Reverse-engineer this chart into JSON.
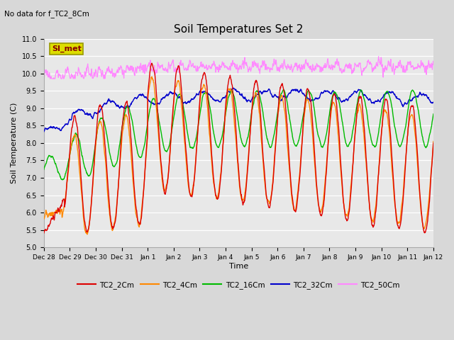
{
  "title": "Soil Temperatures Set 2",
  "subtitle": "No data for f_TC2_8Cm",
  "ylabel": "Soil Temperature (C)",
  "xlabel": "Time",
  "ylim": [
    5.0,
    11.0
  ],
  "yticks": [
    5.0,
    5.5,
    6.0,
    6.5,
    7.0,
    7.5,
    8.0,
    8.5,
    9.0,
    9.5,
    10.0,
    10.5,
    11.0
  ],
  "bg_color": "#d8d8d8",
  "plot_bg_color": "#e8e8e8",
  "legend_labels": [
    "TC2_2Cm",
    "TC2_4Cm",
    "TC2_16Cm",
    "TC2_32Cm",
    "TC2_50Cm"
  ],
  "legend_colors": [
    "#dd0000",
    "#ff8800",
    "#00bb00",
    "#0000cc",
    "#ff88ff"
  ],
  "si_met_box_facecolor": "#dddd00",
  "si_met_box_edgecolor": "#999900",
  "si_met_text_color": "#880000",
  "xtick_positions": [
    0,
    1,
    2,
    3,
    4,
    5,
    6,
    7,
    8,
    9,
    10,
    11,
    12,
    13,
    14,
    15
  ],
  "xtick_labels": [
    "Dec 28",
    "Dec 29",
    "Dec 30",
    "Dec 31",
    "Jan 1",
    "Jan 2",
    "Jan 3",
    "Jan 4",
    "Jan 5",
    "Jan 6",
    "Jan 7",
    "Jan 8",
    "Jan 9",
    "Jan 10",
    "Jan 11",
    "Jan 12"
  ],
  "xlim": [
    0,
    15
  ],
  "figwidth": 6.4,
  "figheight": 4.8,
  "dpi": 100
}
